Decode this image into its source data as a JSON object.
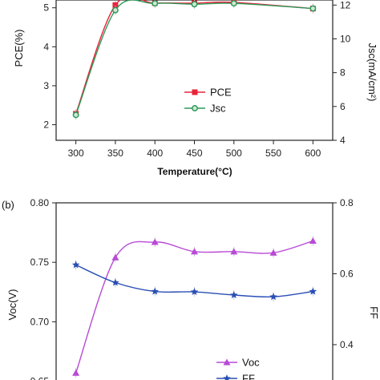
{
  "chart_data": [
    {
      "type": "line",
      "panel_label": "",
      "x": [
        300,
        350,
        400,
        450,
        500,
        550,
        600
      ],
      "xlabel": "Temperature(°C)",
      "xlim": [
        275,
        625
      ],
      "xticks": [
        300,
        350,
        400,
        450,
        500,
        550,
        600
      ],
      "ylabel": "PCE(%)",
      "ylim": [
        1.6,
        5.2
      ],
      "yticks": [
        2,
        3,
        4,
        5
      ],
      "y2label": "Jsc(mA/cm²)",
      "y2lim": [
        4,
        12.3
      ],
      "y2ticks": [
        4,
        6,
        8,
        10,
        12
      ],
      "legend_position": "lower-right",
      "series": [
        {
          "name": "PCE",
          "axis": "left",
          "color": "#e8243a",
          "marker": "square",
          "values": [
            2.28,
            5.07,
            5.12,
            5.12,
            5.14,
            null,
            4.98
          ]
        },
        {
          "name": "Jsc",
          "axis": "right",
          "color": "#2e9a5a",
          "marker": "circle",
          "values": [
            5.5,
            11.7,
            12.1,
            12.05,
            12.1,
            null,
            11.8
          ]
        }
      ]
    },
    {
      "type": "line",
      "panel_label": "(b)",
      "x": [
        300,
        350,
        400,
        450,
        500,
        550,
        600
      ],
      "xlim": [
        275,
        625
      ],
      "ylabel": "Voc(V)",
      "ylim": [
        0.645,
        0.8
      ],
      "yticks": [
        0.65,
        0.7,
        0.75,
        0.8
      ],
      "y2label": "FF",
      "y2lim": [
        0.28,
        0.8
      ],
      "y2ticks": [
        0.4,
        0.6,
        0.8
      ],
      "legend_position": "lower-right",
      "series": [
        {
          "name": "Voc",
          "axis": "left",
          "color": "#b84ad6",
          "marker": "triangle",
          "values": [
            0.657,
            0.754,
            0.767,
            0.759,
            0.759,
            0.758,
            0.768
          ]
        },
        {
          "name": "FF",
          "axis": "right",
          "color": "#2a4fb5",
          "marker": "star",
          "values": [
            0.625,
            0.575,
            0.55,
            0.549,
            0.54,
            0.535,
            0.55
          ]
        }
      ]
    }
  ]
}
